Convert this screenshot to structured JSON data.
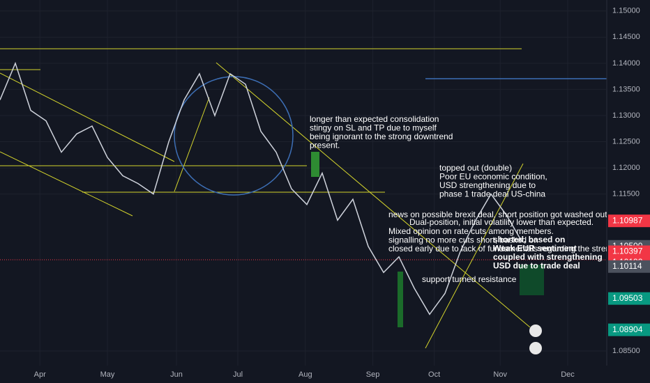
{
  "chart_data": {
    "type": "line",
    "color": "#cfd3dc",
    "x": [
      0,
      1,
      2,
      3,
      4,
      5,
      6,
      7,
      8,
      9,
      10,
      11,
      12,
      13,
      14,
      15,
      16,
      17,
      18,
      19,
      20,
      21,
      22,
      23,
      24,
      25,
      26,
      27,
      28,
      29,
      30,
      31,
      32,
      33,
      34
    ],
    "values": [
      1.133,
      1.14,
      1.131,
      1.129,
      1.123,
      1.1265,
      1.128,
      1.122,
      1.1185,
      1.117,
      1.115,
      1.125,
      1.133,
      1.138,
      1.13,
      1.138,
      1.136,
      1.127,
      1.123,
      1.116,
      1.113,
      1.119,
      1.11,
      1.114,
      1.105,
      1.1,
      1.103,
      1.097,
      1.092,
      1.096,
      1.104,
      1.11,
      1.115,
      1.111,
      1.106
    ],
    "xlim": [
      0,
      39.5
    ],
    "xticks": [
      {
        "value": 2.6,
        "label": "Apr"
      },
      {
        "value": 7.0,
        "label": "May"
      },
      {
        "value": 11.5,
        "label": "Jun"
      },
      {
        "value": 15.5,
        "label": "Jul"
      },
      {
        "value": 19.9,
        "label": "Aug"
      },
      {
        "value": 24.3,
        "label": "Sep"
      },
      {
        "value": 28.3,
        "label": "Oct"
      },
      {
        "value": 32.6,
        "label": "Nov"
      },
      {
        "value": 37.0,
        "label": "Dec"
      }
    ],
    "ylim": [
      1.0822,
      1.1521
    ],
    "yticks": [
      {
        "value": 1.15,
        "label": "1.15000"
      },
      {
        "value": 1.145,
        "label": "1.14500"
      },
      {
        "value": 1.14,
        "label": "1.14000"
      },
      {
        "value": 1.135,
        "label": "1.13500"
      },
      {
        "value": 1.13,
        "label": "1.13000"
      },
      {
        "value": 1.125,
        "label": "1.12500"
      },
      {
        "value": 1.12,
        "label": "1.12000"
      },
      {
        "value": 1.115,
        "label": "1.11500"
      },
      {
        "value": 1.085,
        "label": "1.08500"
      }
    ],
    "price_tags": [
      {
        "value": 1.10987,
        "label": "1.10987",
        "color": "#f23645"
      },
      {
        "value": 1.105,
        "label": "1.10500",
        "color": "#4c525e"
      },
      {
        "value": 1.10397,
        "label": "1.10397",
        "color": "#f23645"
      },
      {
        "value": 1.10192,
        "label": "1.10192",
        "color": "#f23645"
      },
      {
        "value": 1.10114,
        "label": "1.10114",
        "color": "#4c525e"
      },
      {
        "value": 1.09503,
        "label": "1.09503",
        "color": "#089981"
      },
      {
        "value": 1.08904,
        "label": "1.08904",
        "color": "#089981"
      }
    ],
    "annotations": [
      [
        "longer than expected consolidation",
        "stingy on SL and TP due to myself",
        "being ignorant to the strong downtrend",
        "present."
      ],
      [
        "topped out (double)",
        "Poor EU economic condition,",
        "USD strengthening due to",
        "phase 1 trade deal US-china"
      ],
      [
        "news on possible brexit deal, short position got washed out."
      ],
      [
        "Dual-position, initial volatility lower than expected."
      ],
      [
        "Mixed opinion on rate cuts among members.",
        "signalling no more cuts short, basked on",
        "closed early due to lack of fundamentals regarding the strength"
      ],
      [
        "shorted, based on",
        "Weak EUR sentiment",
        "coupled with strengthening",
        "USD due to trade deal"
      ],
      [
        "support turned resistance"
      ]
    ]
  }
}
